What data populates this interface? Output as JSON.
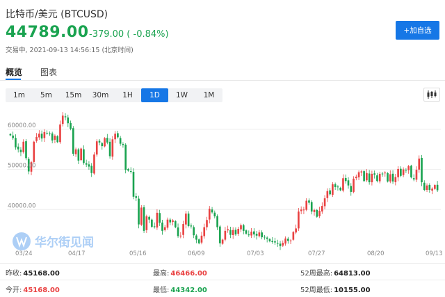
{
  "header": {
    "title": "比特币/美元 (BTCUSD)",
    "price": "44789.00",
    "change": "-379.00 ( -0.84%)",
    "status": "交易中, 2021-09-13 14:56:15 (北京时间)",
    "add_button": "+加自选"
  },
  "tabs": [
    {
      "label": "概览",
      "active": true
    },
    {
      "label": "图表",
      "active": false
    }
  ],
  "periods": [
    {
      "label": "1m",
      "active": false
    },
    {
      "label": "5m",
      "active": false
    },
    {
      "label": "15m",
      "active": false
    },
    {
      "label": "30m",
      "active": false
    },
    {
      "label": "1H",
      "active": false
    },
    {
      "label": "1D",
      "active": true
    },
    {
      "label": "1W",
      "active": false
    },
    {
      "label": "1M",
      "active": false
    }
  ],
  "chart_type_icon": "candlestick-icon",
  "watermark": "华尔街见闻",
  "chart_data": {
    "type": "candlestick",
    "ylim": [
      30000,
      65000
    ],
    "y_ticks": [
      "60000.00",
      "50000.00",
      "40000.00"
    ],
    "x_ticks": [
      "03/24",
      "04/17",
      "05/16",
      "06/09",
      "07/03",
      "07/27",
      "08/20",
      "09/13"
    ],
    "up_color": "#e94141",
    "down_color": "#1aa350",
    "closes": [
      58500,
      57800,
      55500,
      55000,
      54300,
      56900,
      52800,
      49500,
      51800,
      56900,
      58100,
      58900,
      57700,
      59300,
      59000,
      58900,
      57200,
      58400,
      56800,
      61200,
      63400,
      63000,
      61500,
      60100,
      53900,
      55000,
      52200,
      55200,
      51600,
      51200,
      50700,
      49100,
      53700,
      57000,
      56700,
      55800,
      57800,
      56700,
      53300,
      57500,
      58900,
      58000,
      56400,
      56100,
      49900,
      49700,
      49400,
      43200,
      42900,
      36300,
      40500,
      34700,
      38300,
      37500,
      35700,
      35700,
      39200,
      36700,
      34700,
      35600,
      37500,
      36800,
      37300,
      35600,
      33400,
      33500,
      36400,
      39000,
      35900,
      35800,
      33600,
      32500,
      31600,
      33500,
      35600,
      37400,
      40200,
      39300,
      38300,
      35600,
      31600,
      32500,
      34700,
      35100,
      33700,
      34900,
      33800,
      35200,
      36100,
      34700,
      34000,
      33600,
      34500,
      33800,
      33500,
      34300,
      33100,
      33200,
      32700,
      32100,
      31900,
      31800,
      31500,
      30900,
      31700,
      32800,
      32200,
      32300,
      34400,
      35300,
      39500,
      40000,
      40000,
      42200,
      41700,
      39500,
      39900,
      38200,
      39700,
      40900,
      42800,
      44600,
      43800,
      46300,
      45600,
      45600,
      44800,
      47800,
      47100,
      46000,
      44400,
      47700,
      48200,
      49300,
      49500,
      47100,
      49100,
      46800,
      48900,
      48700,
      47100,
      48900,
      48900,
      49200,
      47000,
      48800,
      47000,
      48100,
      50100,
      48400,
      50000,
      49800,
      50800,
      48000,
      47500,
      49900,
      52700,
      46800,
      44900,
      46000,
      44900,
      45200,
      46100,
      44800
    ]
  },
  "stats": {
    "row1": [
      {
        "label": "昨收:",
        "value": "45168.00",
        "color": "black"
      },
      {
        "label": "最高:",
        "value": "46466.00",
        "color": "red"
      },
      {
        "label": "52周最高:",
        "value": "64813.00",
        "color": "black"
      }
    ],
    "row2": [
      {
        "label": "今开:",
        "value": "45168.00",
        "color": "red"
      },
      {
        "label": "最低:",
        "value": "44342.00",
        "color": "green"
      },
      {
        "label": "52周最低:",
        "value": "10155.00",
        "color": "black"
      }
    ]
  }
}
